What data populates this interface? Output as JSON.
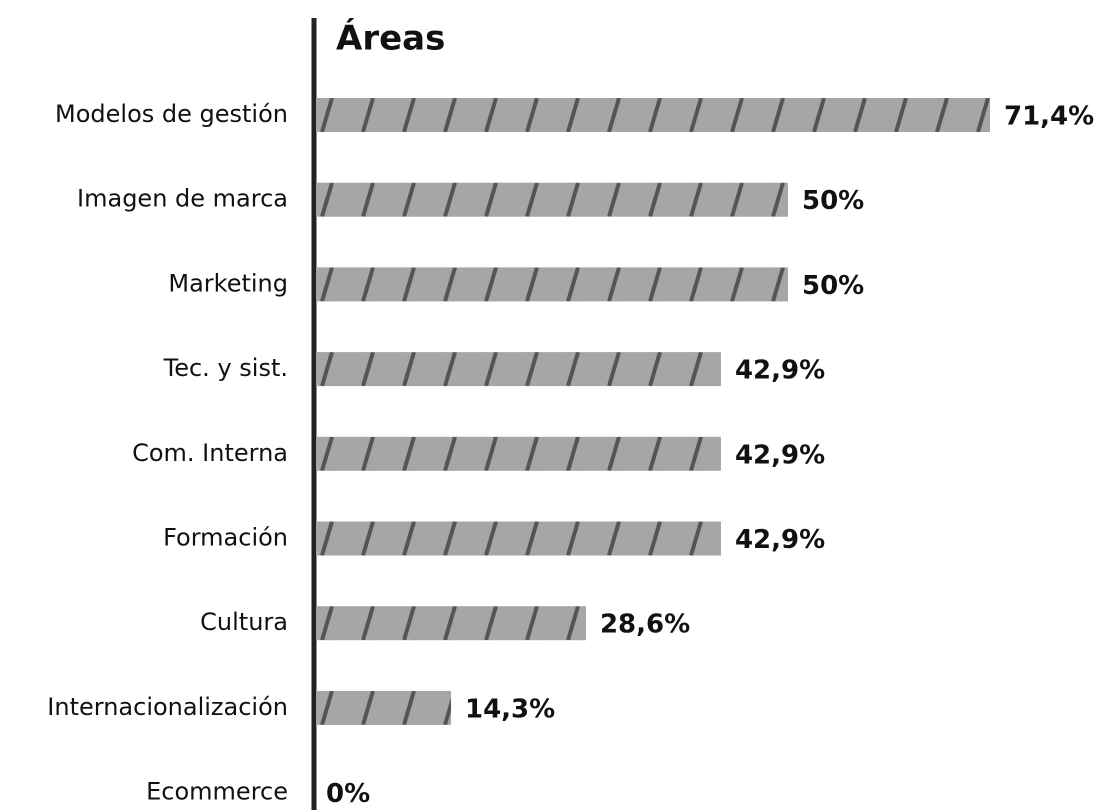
{
  "chart_data": {
    "type": "bar",
    "orientation": "horizontal",
    "title": "Áreas",
    "categories": [
      "Modelos de gestión",
      "Imagen de marca",
      "Marketing",
      "Tec. y sist.",
      "Com. Interna",
      "Formación",
      "Cultura",
      "Internacionalización",
      "Ecommerce"
    ],
    "values": [
      71.4,
      50,
      50,
      42.9,
      42.9,
      42.9,
      28.6,
      14.3,
      0
    ],
    "value_labels": [
      "71,4%",
      "50%",
      "50%",
      "42,9%",
      "42,9%",
      "42,9%",
      "28,6%",
      "14,3%",
      "0%"
    ],
    "color": "#a6a6a6",
    "stripe_color": "#555555"
  }
}
